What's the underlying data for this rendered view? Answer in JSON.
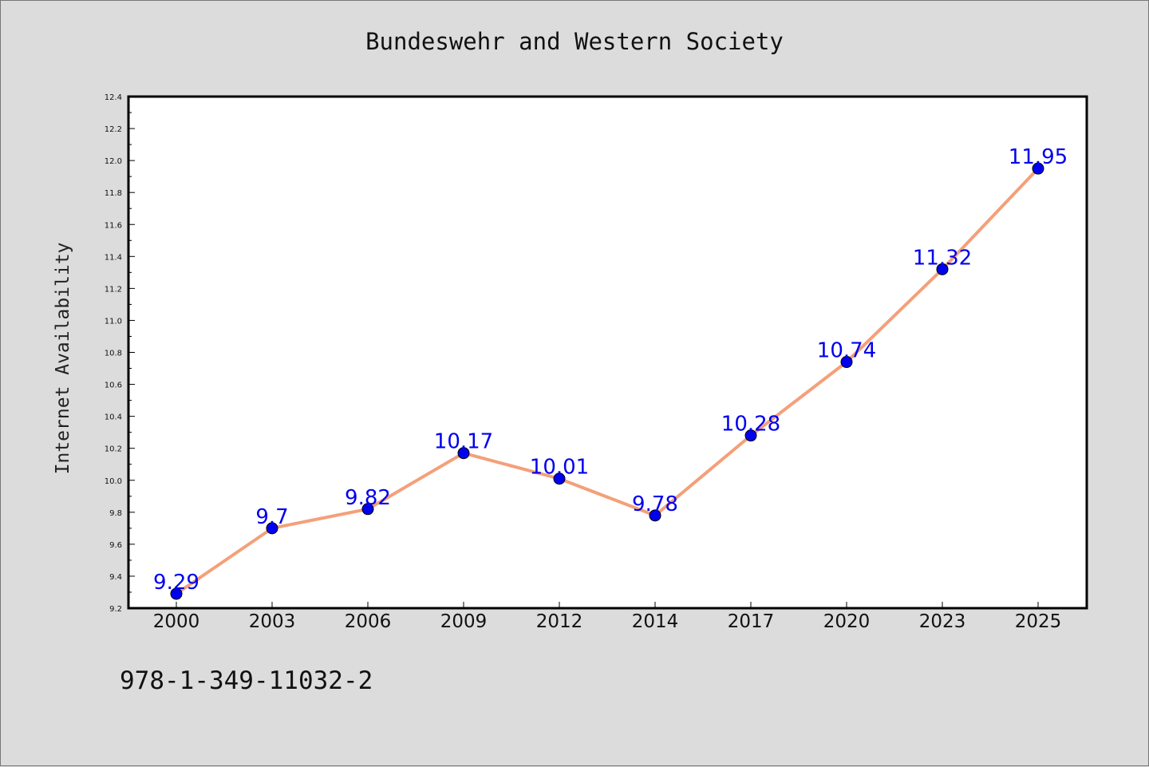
{
  "chart_data": {
    "type": "line",
    "title": "Bundeswehr and Western Society",
    "xlabel": "",
    "ylabel": "Internet Availability",
    "categories": [
      "2000",
      "2003",
      "2006",
      "2009",
      "2012",
      "2014",
      "2017",
      "2020",
      "2023",
      "2025"
    ],
    "series": [
      {
        "values": [
          9.29,
          9.7,
          9.82,
          10.17,
          10.01,
          9.78,
          10.28,
          10.74,
          11.32,
          11.95
        ],
        "labels": [
          "9.29",
          "9.7",
          "9.82",
          "10.17",
          "10.01",
          "9.78",
          "10.28",
          "10.74",
          "11.32",
          "11.95"
        ],
        "line_color": "#f4a07a",
        "marker_color": "#0000ee",
        "label_color": "#0000ee"
      }
    ],
    "ylim": [
      9.2,
      12.4
    ],
    "yticks": [
      "9.2",
      "9.4",
      "9.6",
      "9.8",
      "10.0",
      "10.2",
      "10.4",
      "10.6",
      "10.8",
      "11.0",
      "11.2",
      "11.4",
      "11.6",
      "11.8",
      "12.0",
      "12.2",
      "12.4"
    ],
    "grid": false,
    "legend": "none"
  },
  "footer": {
    "isbn": "978-1-349-11032-2"
  }
}
